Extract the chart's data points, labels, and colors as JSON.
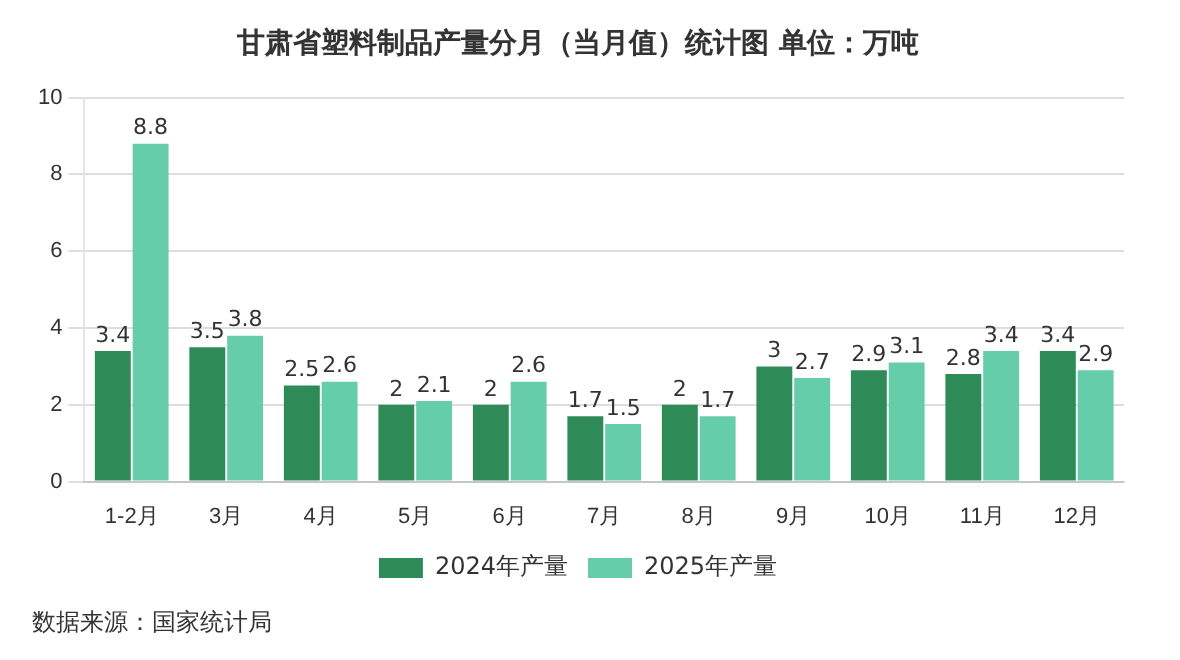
{
  "chart_data": {
    "type": "bar",
    "title": "甘肃省塑料制品产量分月（当月值）统计图 单位：万吨",
    "categories": [
      "1-2月",
      "3月",
      "4月",
      "5月",
      "6月",
      "7月",
      "8月",
      "9月",
      "10月",
      "11月",
      "12月"
    ],
    "series": [
      {
        "name": "2024年产量",
        "color": "#2e8b57",
        "values": [
          3.4,
          3.5,
          2.5,
          2,
          2,
          1.7,
          2,
          3,
          2.9,
          2.8,
          3.4
        ]
      },
      {
        "name": "2025年产量",
        "color": "#66cdaa",
        "values": [
          8.8,
          3.8,
          2.6,
          2.1,
          2.6,
          1.5,
          1.7,
          2.7,
          3.1,
          3.4,
          2.9
        ]
      }
    ],
    "ylim": [
      0,
      10
    ],
    "yticks": [
      0,
      2,
      4,
      6,
      8,
      10
    ],
    "grid": "y",
    "legend": "bottom",
    "data_labels": true,
    "annotations": [
      "数据来源：国家统计局"
    ]
  }
}
